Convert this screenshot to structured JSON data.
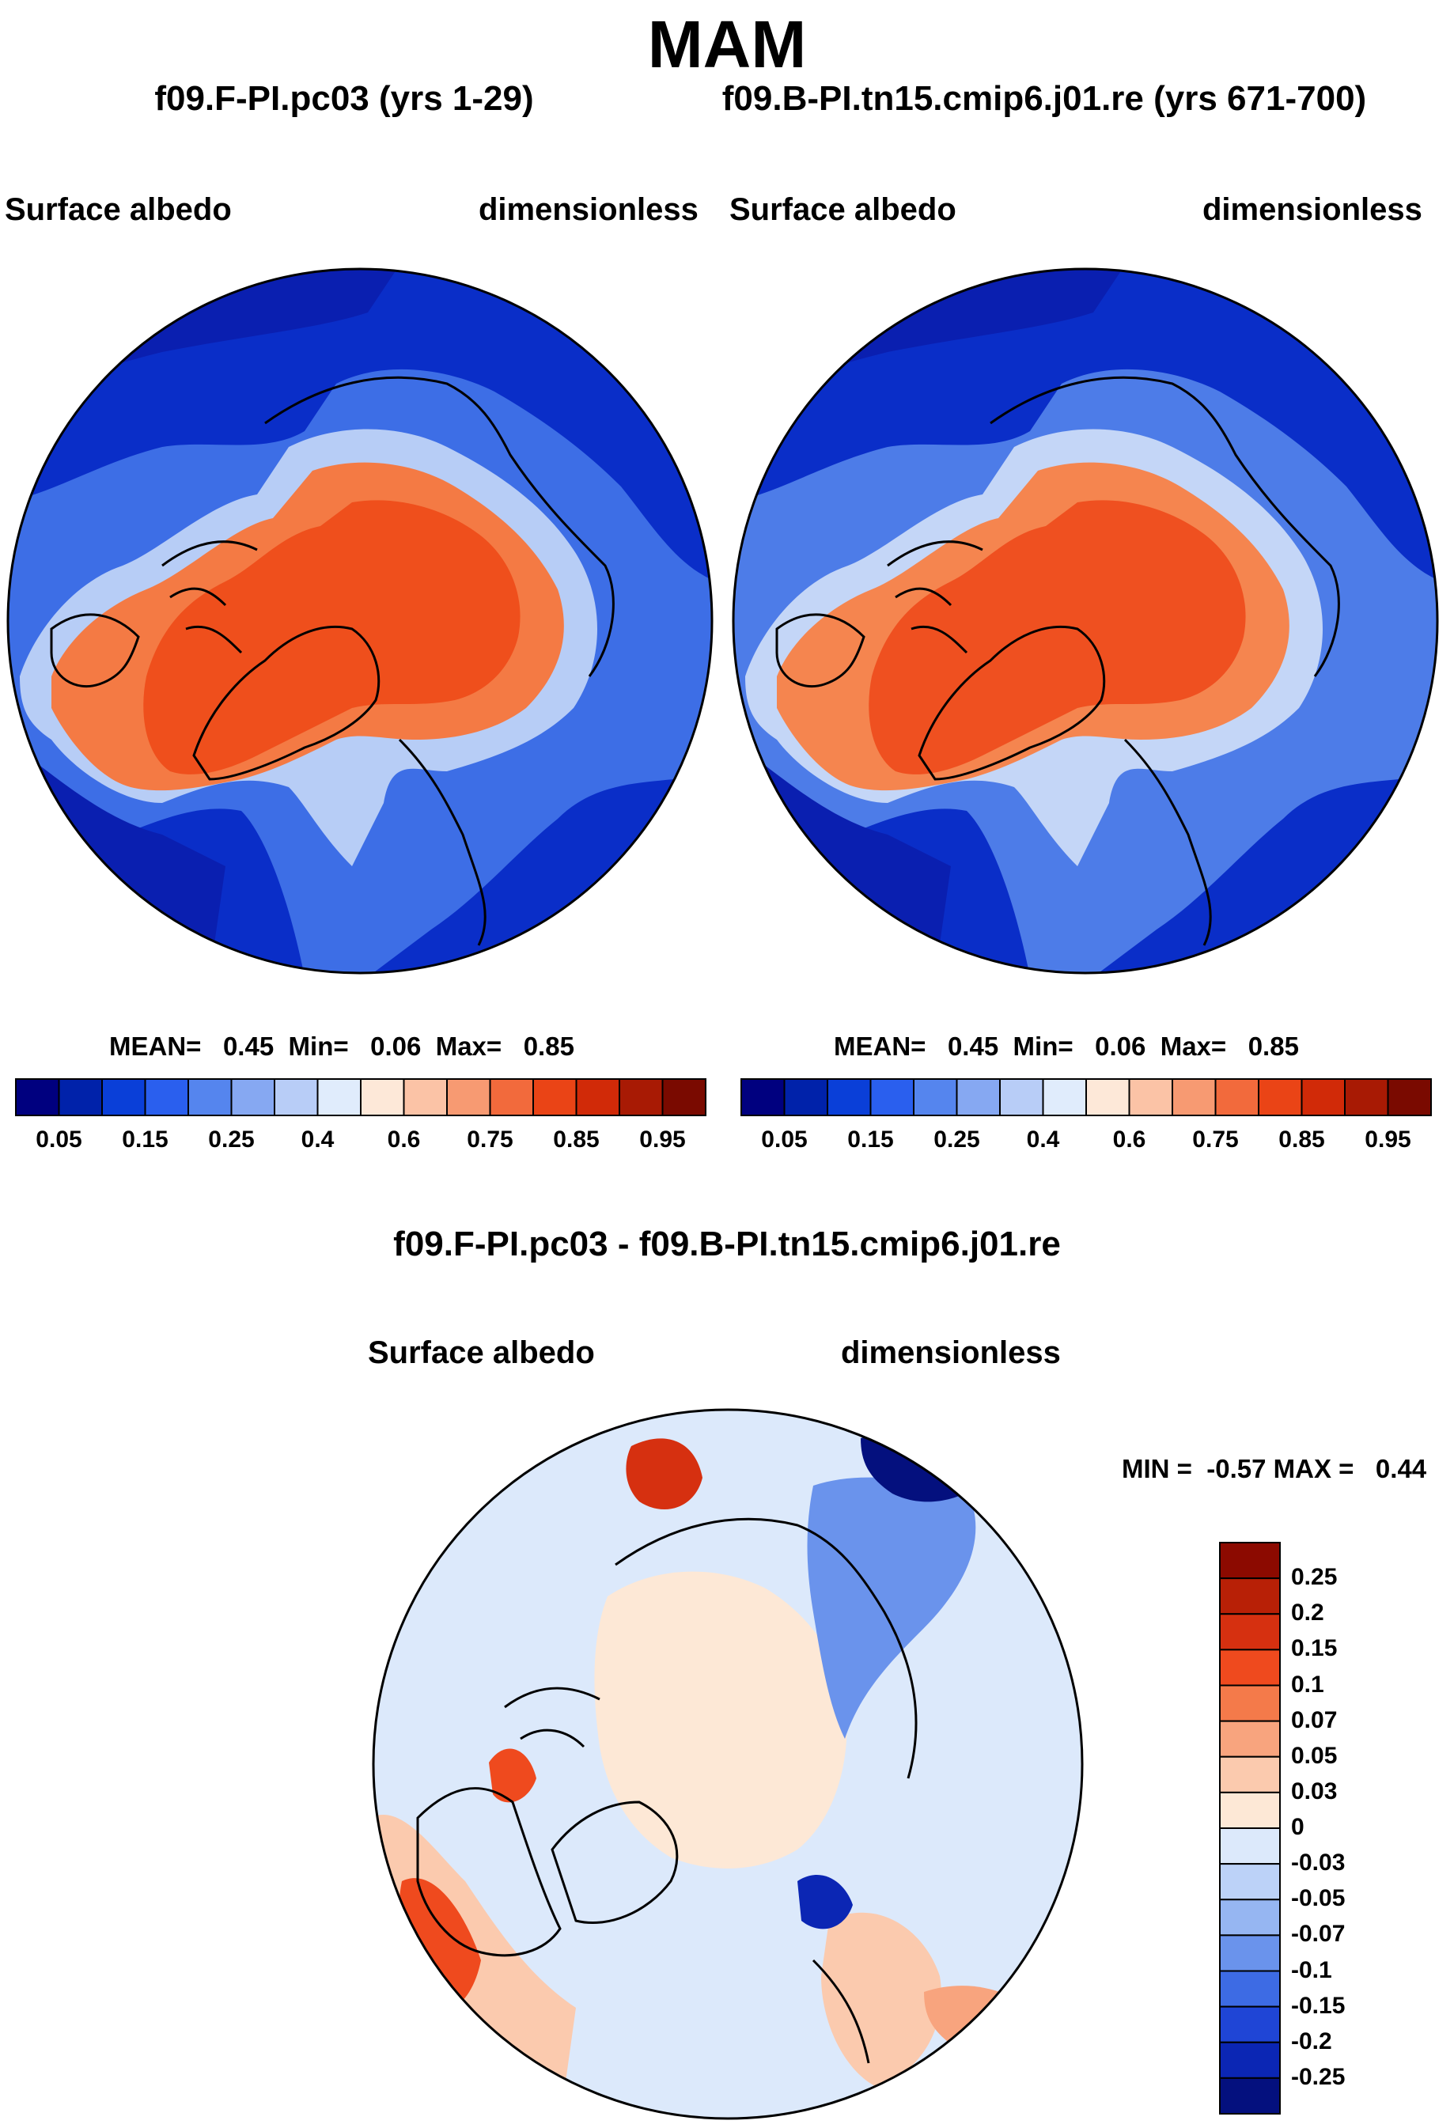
{
  "title": "MAM",
  "panels": [
    {
      "case": "f09.F-PI.pc03 (yrs 1-29)",
      "variable": "Surface albedo",
      "units": "dimensionless",
      "stats": {
        "mean_label": "MEAN=",
        "mean": "0.45",
        "min_label": "Min=",
        "min": "0.06",
        "max_label": "Max=",
        "max": "0.85"
      }
    },
    {
      "case": "f09.B-PI.tn15.cmip6.j01.re (yrs 671-700)",
      "variable": "Surface albedo",
      "units": "dimensionless",
      "stats": {
        "mean_label": "MEAN=",
        "mean": "0.45",
        "min_label": "Min=",
        "min": "0.06",
        "max_label": "Max=",
        "max": "0.85"
      }
    }
  ],
  "albedo_colorbar": {
    "ticks": [
      "0.05",
      "0.15",
      "0.25",
      "0.4",
      "0.6",
      "0.75",
      "0.85",
      "0.95"
    ],
    "colors": [
      "#00007f",
      "#0022aa",
      "#0a3fd8",
      "#2a5fee",
      "#5585ee",
      "#86a8f2",
      "#b8cdf7",
      "#e0ecfc",
      "#fde8d8",
      "#fbc3a6",
      "#f79a72",
      "#f26a3c",
      "#ea4416",
      "#d12a08",
      "#a81a04",
      "#7a0a00"
    ]
  },
  "difference": {
    "title": "f09.F-PI.pc03 - f09.B-PI.tn15.cmip6.j01.re",
    "variable": "Surface albedo",
    "units": "dimensionless",
    "minmax": "MIN =  -0.57 MAX =   0.44",
    "colorbar": {
      "ticks": [
        "0.25",
        "0.2",
        "0.15",
        "0.1",
        "0.07",
        "0.05",
        "0.03",
        "0",
        "-0.03",
        "-0.05",
        "-0.07",
        "-0.1",
        "-0.15",
        "-0.2",
        "-0.25"
      ],
      "colors": [
        "#8c0a00",
        "#b82006",
        "#d63010",
        "#ef4a1e",
        "#f47a4a",
        "#f8a47e",
        "#fbcaae",
        "#fde8d6",
        "#dce9fb",
        "#bcd2f8",
        "#96b6f2",
        "#6a93ec",
        "#3d6be4",
        "#1f45d6",
        "#0b26b4",
        "#04107e"
      ]
    }
  }
}
